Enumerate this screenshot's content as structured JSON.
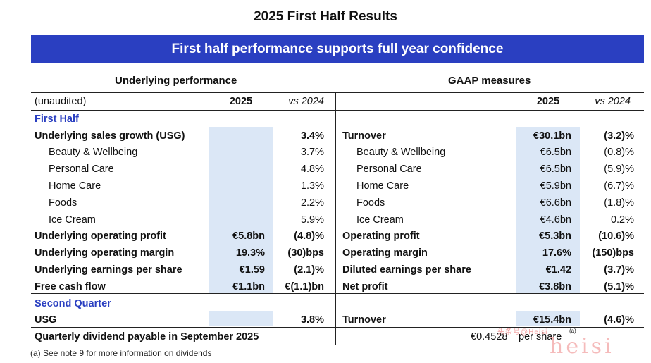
{
  "title": "2025 First Half Results",
  "banner": "First half performance supports full year confidence",
  "left": {
    "section_title": "Underlying performance",
    "header": {
      "label": "(unaudited)",
      "col1": "2025",
      "col2": "vs 2024"
    },
    "first_half_label": "First Half",
    "rows": [
      {
        "label": "Underlying sales growth (USG)",
        "v2025": "",
        "vs": "3.4%"
      },
      {
        "label": "Beauty & Wellbeing",
        "v2025": "",
        "vs": "3.7%"
      },
      {
        "label": "Personal Care",
        "v2025": "",
        "vs": "4.8%"
      },
      {
        "label": "Home Care",
        "v2025": "",
        "vs": "1.3%"
      },
      {
        "label": "Foods",
        "v2025": "",
        "vs": "2.2%"
      },
      {
        "label": "Ice Cream",
        "v2025": "",
        "vs": "5.9%"
      },
      {
        "label": "Underlying operating profit",
        "v2025": "€5.8bn",
        "vs": "(4.8)%"
      },
      {
        "label": "Underlying operating margin",
        "v2025": "19.3%",
        "vs": "(30)bps"
      },
      {
        "label": "Underlying earnings per share",
        "v2025": "€1.59",
        "vs": "(2.1)%"
      },
      {
        "label": "Free cash flow",
        "v2025": "€1.1bn",
        "vs": "€(1.1)bn"
      }
    ],
    "second_quarter_label": "Second Quarter",
    "q2_row": {
      "label": "USG",
      "v2025": "",
      "vs": "3.8%"
    }
  },
  "right": {
    "section_title": "GAAP measures",
    "header": {
      "col1": "2025",
      "col2": "vs 2024"
    },
    "rows": [
      {
        "label": "Turnover",
        "v2025": "€30.1bn",
        "vs": "(3.2)%"
      },
      {
        "label": "Beauty & Wellbeing",
        "v2025": "€6.5bn",
        "vs": "(0.8)%"
      },
      {
        "label": "Personal Care",
        "v2025": "€6.5bn",
        "vs": "(5.9)%"
      },
      {
        "label": "Home Care",
        "v2025": "€5.9bn",
        "vs": "(6.7)%"
      },
      {
        "label": "Foods",
        "v2025": "€6.6bn",
        "vs": "(1.8)%"
      },
      {
        "label": "Ice Cream",
        "v2025": "€4.6bn",
        "vs": "0.2%"
      },
      {
        "label": "Operating profit",
        "v2025": "€5.3bn",
        "vs": "(10.6)%"
      },
      {
        "label": "Operating margin",
        "v2025": "17.6%",
        "vs": "(150)bps"
      },
      {
        "label": "Diluted earnings per share",
        "v2025": "€1.42",
        "vs": "(3.7)%"
      },
      {
        "label": "Net profit",
        "v2025": "€3.8bn",
        "vs": "(5.1)%"
      }
    ],
    "q2_row": {
      "label": "Turnover",
      "v2025": "€15.4bn",
      "vs": "(4.6)%"
    }
  },
  "dividend": {
    "label": "Quarterly dividend payable in September 2025",
    "value": "€0.4528",
    "unit": "per share",
    "note_ref": "(a)"
  },
  "footnote": "(a) See note 9 for more information on dividends",
  "watermark": {
    "line1": "头条号@Heisi",
    "line2": "heisi"
  }
}
